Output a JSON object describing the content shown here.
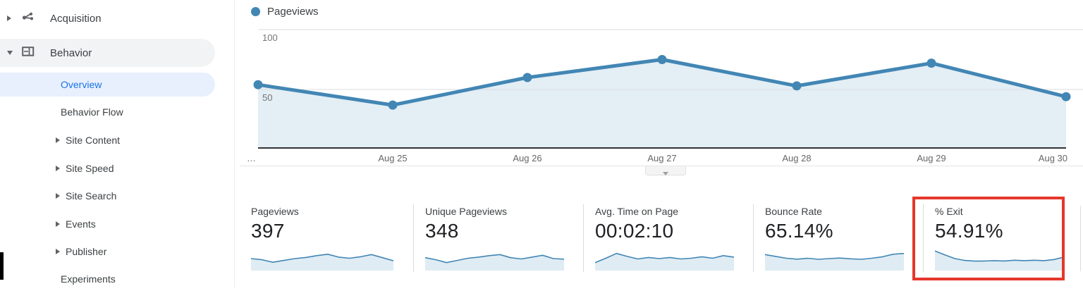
{
  "sidebar": {
    "items": [
      {
        "label": "Acquisition",
        "level": "main",
        "icon": "acquisition-icon",
        "arrow": "right"
      },
      {
        "label": "Behavior",
        "level": "main",
        "icon": "behavior-icon",
        "arrow": "down",
        "highlighted": true
      },
      {
        "label": "Overview",
        "level": "sub",
        "selected": true
      },
      {
        "label": "Behavior Flow",
        "level": "sub"
      },
      {
        "label": "Site Content",
        "level": "sub",
        "arrow": "right"
      },
      {
        "label": "Site Speed",
        "level": "sub",
        "arrow": "right"
      },
      {
        "label": "Site Search",
        "level": "sub",
        "arrow": "right"
      },
      {
        "label": "Events",
        "level": "sub",
        "arrow": "right"
      },
      {
        "label": "Publisher",
        "level": "sub",
        "arrow": "right"
      },
      {
        "label": "Experiments",
        "level": "sub",
        "clipped": true
      }
    ]
  },
  "chart_data": {
    "type": "line",
    "title": "Pageviews",
    "x": [
      "…",
      "Aug 25",
      "Aug 26",
      "Aug 27",
      "Aug 28",
      "Aug 29",
      "Aug 30"
    ],
    "series": [
      {
        "name": "Pageviews",
        "values": [
          54,
          37,
          60,
          75,
          53,
          72,
          44
        ]
      }
    ],
    "ylim": [
      0,
      100
    ],
    "yticks": [
      100,
      50
    ],
    "grid": true,
    "area_fill": true,
    "legend_position": "top-left"
  },
  "scorecards": [
    {
      "label": "Pageviews",
      "value": "397",
      "spark": [
        0.5,
        0.44,
        0.3,
        0.4,
        0.5,
        0.56,
        0.66,
        0.74,
        0.58,
        0.52,
        0.6,
        0.72,
        0.55,
        0.38
      ]
    },
    {
      "label": "Unique Pageviews",
      "value": "348",
      "spark": [
        0.55,
        0.44,
        0.28,
        0.4,
        0.52,
        0.58,
        0.66,
        0.72,
        0.55,
        0.48,
        0.58,
        0.68,
        0.5,
        0.47
      ]
    },
    {
      "label": "Avg. Time on Page",
      "value": "00:02:10",
      "spark": [
        0.28,
        0.52,
        0.78,
        0.62,
        0.48,
        0.56,
        0.5,
        0.56,
        0.48,
        0.52,
        0.6,
        0.52,
        0.66,
        0.58
      ]
    },
    {
      "label": "Bounce Rate",
      "value": "65.14%",
      "spark": [
        0.72,
        0.62,
        0.52,
        0.47,
        0.52,
        0.46,
        0.5,
        0.53,
        0.49,
        0.46,
        0.52,
        0.6,
        0.74,
        0.78
      ]
    },
    {
      "label": "% Exit",
      "value": "54.91%",
      "highlighted": true,
      "spark": [
        0.92,
        0.7,
        0.5,
        0.4,
        0.36,
        0.37,
        0.39,
        0.37,
        0.41,
        0.39,
        0.41,
        0.39,
        0.45,
        0.58
      ]
    }
  ],
  "expander": {
    "icon": "chevron-down-icon"
  },
  "colors": {
    "chart_line": "#4286b4",
    "chart_fill": "#e3eef5",
    "selected_blue": "#1a73e8",
    "selected_bg": "#e8f0fe",
    "highlighted_bg": "#f1f3f4",
    "highlight_red": "#e5372b",
    "axis_text": "#757575",
    "label_text": "#3c4043",
    "value_text": "#202124"
  }
}
